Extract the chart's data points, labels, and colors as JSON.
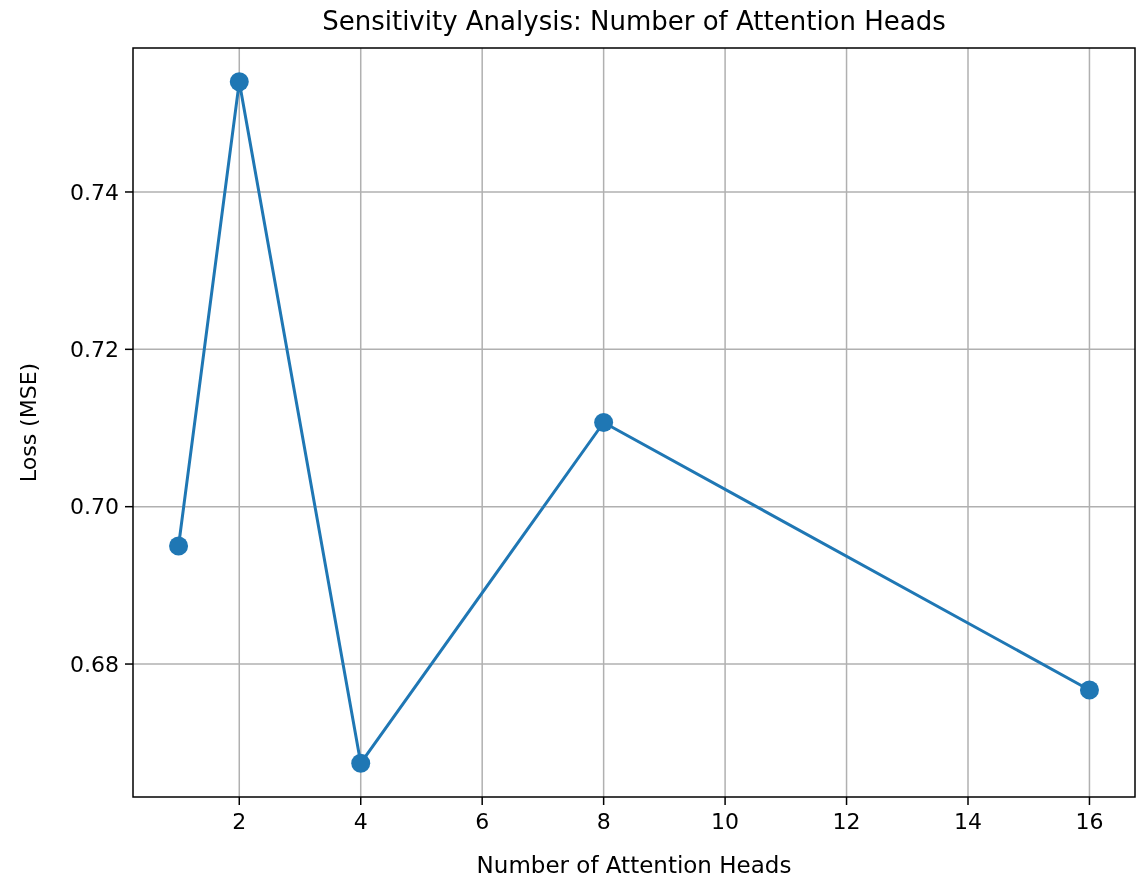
{
  "chart_data": {
    "type": "line",
    "title": "Sensitivity Analysis: Number of Attention Heads",
    "xlabel": "Number of Attention Heads",
    "ylabel": "Loss (MSE)",
    "x": [
      1,
      2,
      4,
      8,
      16
    ],
    "series": [
      {
        "color": "#1f77b4",
        "values": [
          0.695,
          0.754,
          0.6674,
          0.7107,
          0.6767
        ]
      }
    ],
    "xlim": [
      0.25,
      16.75
    ],
    "xticks": [
      2,
      4,
      6,
      8,
      10,
      12,
      14,
      16
    ],
    "ylim": [
      0.6631,
      0.7583
    ],
    "yticks": [
      0.68,
      {
        "value": 0.7,
        "label": "0.70"
      },
      0.72,
      0.74
    ],
    "grid": true,
    "marker": "circle",
    "line_style": "solid"
  }
}
